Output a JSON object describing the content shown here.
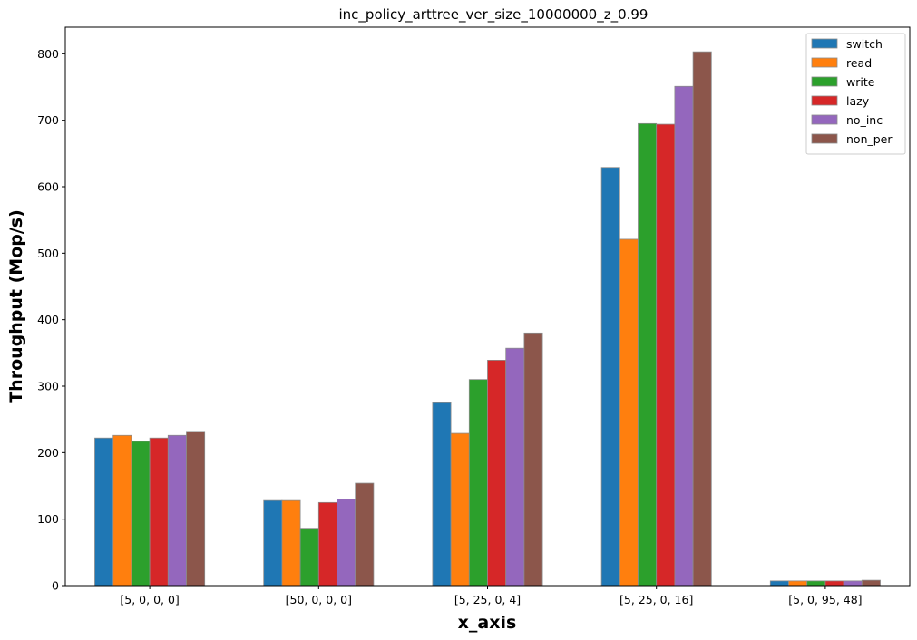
{
  "chart_data": {
    "type": "bar",
    "title": "inc_policy_arttree_ver_size_10000000_z_0.99",
    "xlabel": "x_axis",
    "ylabel": "Throughput (Mop/s)",
    "categories": [
      "[5, 0, 0, 0]",
      "[50, 0, 0, 0]",
      "[5, 25, 0, 4]",
      "[5, 25, 0, 16]",
      "[5, 0, 95, 48]"
    ],
    "ylim": [
      0,
      840
    ],
    "yticks": [
      0,
      100,
      200,
      300,
      400,
      500,
      600,
      700,
      800
    ],
    "grid": false,
    "legend_position": "top-right",
    "series": [
      {
        "name": "switch",
        "color": "#1f77b4",
        "values": [
          222,
          128,
          275,
          629,
          7
        ]
      },
      {
        "name": "read",
        "color": "#ff7f0e",
        "values": [
          226,
          128,
          229,
          521,
          7
        ]
      },
      {
        "name": "write",
        "color": "#2ca02c",
        "values": [
          217,
          85,
          310,
          695,
          7
        ]
      },
      {
        "name": "lazy",
        "color": "#d62728",
        "values": [
          222,
          125,
          339,
          694,
          7
        ]
      },
      {
        "name": "no_inc",
        "color": "#9467bd",
        "values": [
          226,
          130,
          357,
          751,
          7
        ]
      },
      {
        "name": "non_per",
        "color": "#8c564b",
        "values": [
          232,
          154,
          380,
          803,
          8
        ]
      }
    ]
  }
}
